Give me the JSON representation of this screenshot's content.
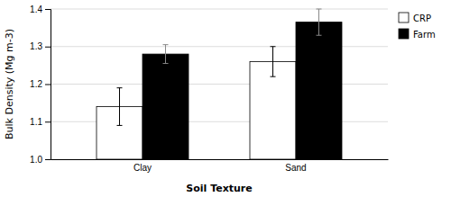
{
  "chart_data": {
    "type": "bar",
    "categories": [
      "Clay",
      "Sand"
    ],
    "series": [
      {
        "name": "CRP",
        "color": "#ffffff",
        "values": [
          1.14,
          1.26
        ],
        "errors": [
          0.05,
          0.04
        ]
      },
      {
        "name": "Farm",
        "color": "#000000",
        "values": [
          1.28,
          1.365
        ],
        "errors": [
          0.025,
          0.035
        ]
      }
    ],
    "xlabel": "Soil Texture",
    "ylabel": "Bulk Density (Mg m-3)",
    "ylim": [
      1.0,
      1.4
    ],
    "yticks": [
      {
        "value": 1.0,
        "label": "1.0"
      },
      1.1,
      1.2,
      1.3,
      {
        "value": 1.4,
        "label": "1.4"
      }
    ],
    "grid": true,
    "legend": "right"
  }
}
